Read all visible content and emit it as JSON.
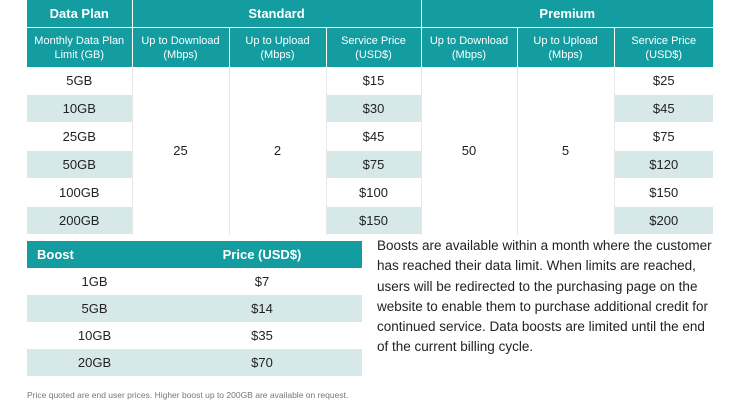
{
  "plans": {
    "header": {
      "data_plan": "Data Plan",
      "standard": "Standard",
      "premium": "Premium"
    },
    "subheader": {
      "limit": "Monthly Data Plan Limit (GB)",
      "std_down": "Up to Download (Mbps)",
      "std_up": "Up to Upload (Mbps)",
      "std_price": "Service Price (USD$)",
      "prem_down": "Up to Download (Mbps)",
      "prem_up": "Up to Upload (Mbps)",
      "prem_price": "Service Price (USD$)"
    },
    "standard_download": "25",
    "standard_upload": "2",
    "premium_download": "50",
    "premium_upload": "5",
    "rows": [
      {
        "limit": "5GB",
        "std_price": "$15",
        "prem_price": "$25"
      },
      {
        "limit": "10GB",
        "std_price": "$30",
        "prem_price": "$45"
      },
      {
        "limit": "25GB",
        "std_price": "$45",
        "prem_price": "$75"
      },
      {
        "limit": "50GB",
        "std_price": "$75",
        "prem_price": "$120"
      },
      {
        "limit": "100GB",
        "std_price": "$100",
        "prem_price": "$150"
      },
      {
        "limit": "200GB",
        "std_price": "$150",
        "prem_price": "$200"
      }
    ]
  },
  "boost": {
    "header": {
      "boost": "Boost",
      "price": "Price (USD$)"
    },
    "rows": [
      {
        "size": "1GB",
        "price": "$7"
      },
      {
        "size": "5GB",
        "price": "$14"
      },
      {
        "size": "10GB",
        "price": "$35"
      },
      {
        "size": "20GB",
        "price": "$70"
      }
    ]
  },
  "description": "Boosts are available within a month where the customer has reached their data limit. When limits are reached, users will be redirected to the purchasing page on the website to enable them to purchase additional credit for continued service. Data boosts are limited until the end of the current billing cycle.",
  "footnote": "Price quoted are end user prices. Higher boost up to 200GB are available on request.",
  "colors": {
    "header_teal": "#139da1",
    "row_tint": "#d6e8e8"
  }
}
